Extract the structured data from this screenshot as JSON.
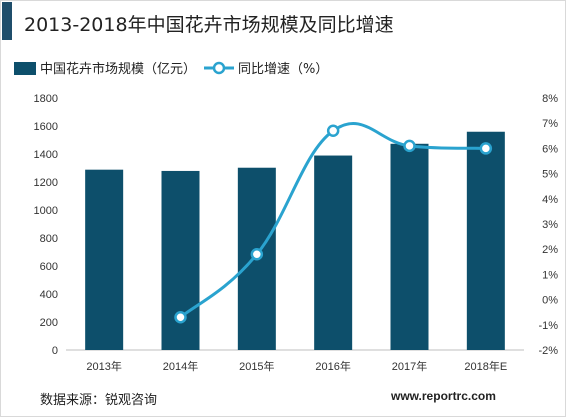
{
  "chart_data": {
    "type": "bar+line",
    "title": "2013-2018年中国花卉市场规模及同比增速",
    "categories": [
      "2013年",
      "2014年",
      "2015年",
      "2016年",
      "2017年",
      "2018年E"
    ],
    "series": [
      {
        "name": "中国花卉市场规模（亿元）",
        "type": "bar",
        "axis": "left",
        "color": "#0d4f6b",
        "values": [
          1288,
          1279,
          1302,
          1389,
          1473,
          1559
        ]
      },
      {
        "name": "同比增速（%）",
        "type": "line",
        "axis": "right",
        "color": "#2aa3cf",
        "values": [
          null,
          -0.7,
          1.8,
          6.7,
          6.1,
          6.0
        ]
      }
    ],
    "ylim_left": [
      0,
      1800
    ],
    "yticks_left": [
      "0",
      "200",
      "400",
      "600",
      "800",
      "1000",
      "1200",
      "1400",
      "1600",
      "1800"
    ],
    "ylim_right": [
      -2,
      8
    ],
    "yticks_right": [
      "-2%",
      "-1%",
      "0%",
      "1%",
      "2%",
      "3%",
      "4%",
      "5%",
      "6%",
      "7%",
      "8%"
    ],
    "grid": false,
    "legend_position": "top-left"
  },
  "source": "数据来源：锐观咨询",
  "watermark": "www.reportrc.com"
}
